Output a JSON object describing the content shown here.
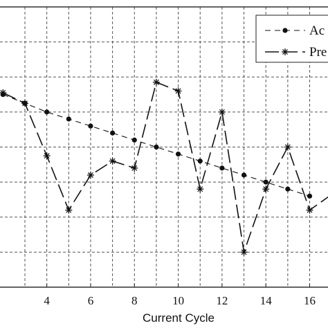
{
  "chart_data": {
    "type": "line",
    "xlabel": "Current Cycle",
    "ylabel": "",
    "xlim": [
      1.8,
      16.9
    ],
    "ylim": [
      0,
      8
    ],
    "x_ticks": [
      4,
      6,
      8,
      10,
      12,
      14,
      16
    ],
    "grid": true,
    "legend_position": "top-right",
    "series": [
      {
        "name": "Ac",
        "marker": "dot",
        "line_style": "long-dash",
        "points": [
          [
            2,
            5.5
          ],
          [
            3,
            5.25
          ],
          [
            4,
            5.0
          ],
          [
            5,
            4.8
          ],
          [
            6,
            4.6
          ],
          [
            7,
            4.4
          ],
          [
            8,
            4.2
          ],
          [
            9,
            4.0
          ],
          [
            10,
            3.8
          ],
          [
            11,
            3.6
          ],
          [
            12,
            3.4
          ],
          [
            13,
            3.2
          ],
          [
            14,
            3.0
          ],
          [
            15,
            2.8
          ],
          [
            16,
            2.6
          ]
        ]
      },
      {
        "name": "Pre",
        "marker": "asterisk",
        "line_style": "very-long-dash",
        "points": [
          [
            2,
            5.55
          ],
          [
            3,
            5.25
          ],
          [
            4,
            3.75
          ],
          [
            5,
            2.2
          ],
          [
            6,
            3.2
          ],
          [
            7,
            3.6
          ],
          [
            8,
            3.4
          ],
          [
            9,
            5.85
          ],
          [
            10,
            5.6
          ],
          [
            11,
            2.8
          ],
          [
            12,
            5.0
          ],
          [
            13,
            1.0
          ],
          [
            14,
            2.8
          ],
          [
            15,
            4.0
          ],
          [
            16,
            2.2
          ],
          [
            16.9,
            2.6
          ]
        ]
      }
    ]
  }
}
